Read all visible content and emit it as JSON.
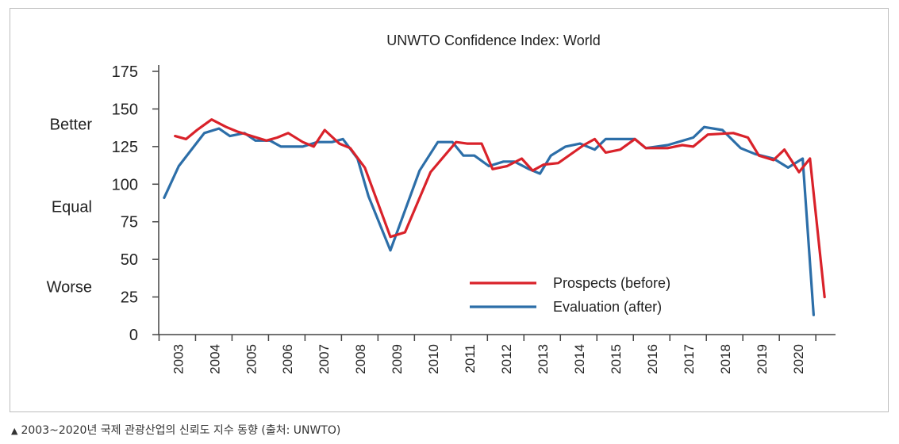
{
  "caption": {
    "marker": "▲",
    "text": "2003~2020년 국제 관광산업의 신뢰도 지수 동향 (출처: UNWTO)"
  },
  "chart_data": {
    "type": "line",
    "title": "UNWTO Confidence Index: World",
    "xlabel": "",
    "ylabel": "",
    "ylim": [
      0,
      175
    ],
    "yticks": [
      0,
      25,
      50,
      75,
      100,
      125,
      150,
      175
    ],
    "ycategory_labels": [
      {
        "label": "Better",
        "value": 140
      },
      {
        "label": "Equal",
        "value": 85
      },
      {
        "label": "Worse",
        "value": 32
      }
    ],
    "xcategories": [
      "2003",
      "2004",
      "2005",
      "2006",
      "2007",
      "2008",
      "2009",
      "2010",
      "2011",
      "2012",
      "2013",
      "2014",
      "2015",
      "2016",
      "2017",
      "2018",
      "2019",
      "2020"
    ],
    "legend_position": "bottom-right",
    "grid": false,
    "series": [
      {
        "name": "Prospects (before)",
        "color": "#d9222a",
        "values": [
          {
            "t": 2003.4,
            "y": 132
          },
          {
            "t": 2003.7,
            "y": 130
          },
          {
            "t": 2004.0,
            "y": 136
          },
          {
            "t": 2004.4,
            "y": 143
          },
          {
            "t": 2004.8,
            "y": 138
          },
          {
            "t": 2005.1,
            "y": 135
          },
          {
            "t": 2005.5,
            "y": 132
          },
          {
            "t": 2005.9,
            "y": 129
          },
          {
            "t": 2006.2,
            "y": 131
          },
          {
            "t": 2006.5,
            "y": 134
          },
          {
            "t": 2006.9,
            "y": 128
          },
          {
            "t": 2007.2,
            "y": 125
          },
          {
            "t": 2007.5,
            "y": 136
          },
          {
            "t": 2007.9,
            "y": 127
          },
          {
            "t": 2008.2,
            "y": 124
          },
          {
            "t": 2008.6,
            "y": 111
          },
          {
            "t": 2009.3,
            "y": 65
          },
          {
            "t": 2009.7,
            "y": 68
          },
          {
            "t": 2010.4,
            "y": 108
          },
          {
            "t": 2011.1,
            "y": 128
          },
          {
            "t": 2011.4,
            "y": 127
          },
          {
            "t": 2011.8,
            "y": 127
          },
          {
            "t": 2012.1,
            "y": 110
          },
          {
            "t": 2012.5,
            "y": 112
          },
          {
            "t": 2012.9,
            "y": 117
          },
          {
            "t": 2013.2,
            "y": 109
          },
          {
            "t": 2013.5,
            "y": 113
          },
          {
            "t": 2013.9,
            "y": 114
          },
          {
            "t": 2014.6,
            "y": 126
          },
          {
            "t": 2014.9,
            "y": 130
          },
          {
            "t": 2015.2,
            "y": 121
          },
          {
            "t": 2015.6,
            "y": 123
          },
          {
            "t": 2016.0,
            "y": 130
          },
          {
            "t": 2016.3,
            "y": 124
          },
          {
            "t": 2016.9,
            "y": 124
          },
          {
            "t": 2017.3,
            "y": 126
          },
          {
            "t": 2017.6,
            "y": 125
          },
          {
            "t": 2018.0,
            "y": 133
          },
          {
            "t": 2018.7,
            "y": 134
          },
          {
            "t": 2019.1,
            "y": 131
          },
          {
            "t": 2019.4,
            "y": 119
          },
          {
            "t": 2019.8,
            "y": 116
          },
          {
            "t": 2020.1,
            "y": 123
          },
          {
            "t": 2020.5,
            "y": 108
          },
          {
            "t": 2020.8,
            "y": 117
          },
          {
            "t": 2021.2,
            "y": 25
          }
        ]
      },
      {
        "name": "Evaluation (after)",
        "color": "#2c6ea8",
        "values": [
          {
            "t": 2003.1,
            "y": 91
          },
          {
            "t": 2003.5,
            "y": 112
          },
          {
            "t": 2004.2,
            "y": 134
          },
          {
            "t": 2004.6,
            "y": 137
          },
          {
            "t": 2004.9,
            "y": 132
          },
          {
            "t": 2005.3,
            "y": 134
          },
          {
            "t": 2005.6,
            "y": 129
          },
          {
            "t": 2006.0,
            "y": 129
          },
          {
            "t": 2006.3,
            "y": 125
          },
          {
            "t": 2006.6,
            "y": 125
          },
          {
            "t": 2006.9,
            "y": 125
          },
          {
            "t": 2007.3,
            "y": 128
          },
          {
            "t": 2007.7,
            "y": 128
          },
          {
            "t": 2008.0,
            "y": 130
          },
          {
            "t": 2008.4,
            "y": 117
          },
          {
            "t": 2008.7,
            "y": 92
          },
          {
            "t": 2009.3,
            "y": 56
          },
          {
            "t": 2010.1,
            "y": 109
          },
          {
            "t": 2010.6,
            "y": 128
          },
          {
            "t": 2011.0,
            "y": 128
          },
          {
            "t": 2011.3,
            "y": 119
          },
          {
            "t": 2011.6,
            "y": 119
          },
          {
            "t": 2012.0,
            "y": 112
          },
          {
            "t": 2012.4,
            "y": 115
          },
          {
            "t": 2012.7,
            "y": 115
          },
          {
            "t": 2013.1,
            "y": 110
          },
          {
            "t": 2013.4,
            "y": 107
          },
          {
            "t": 2013.7,
            "y": 119
          },
          {
            "t": 2014.1,
            "y": 125
          },
          {
            "t": 2014.5,
            "y": 127
          },
          {
            "t": 2014.9,
            "y": 123
          },
          {
            "t": 2015.2,
            "y": 130
          },
          {
            "t": 2015.6,
            "y": 130
          },
          {
            "t": 2016.0,
            "y": 130
          },
          {
            "t": 2016.3,
            "y": 124
          },
          {
            "t": 2016.9,
            "y": 126
          },
          {
            "t": 2017.6,
            "y": 131
          },
          {
            "t": 2017.9,
            "y": 138
          },
          {
            "t": 2018.4,
            "y": 136
          },
          {
            "t": 2018.9,
            "y": 124
          },
          {
            "t": 2019.3,
            "y": 120
          },
          {
            "t": 2019.8,
            "y": 117
          },
          {
            "t": 2020.2,
            "y": 111
          },
          {
            "t": 2020.6,
            "y": 117
          },
          {
            "t": 2020.9,
            "y": 13
          }
        ]
      }
    ]
  }
}
